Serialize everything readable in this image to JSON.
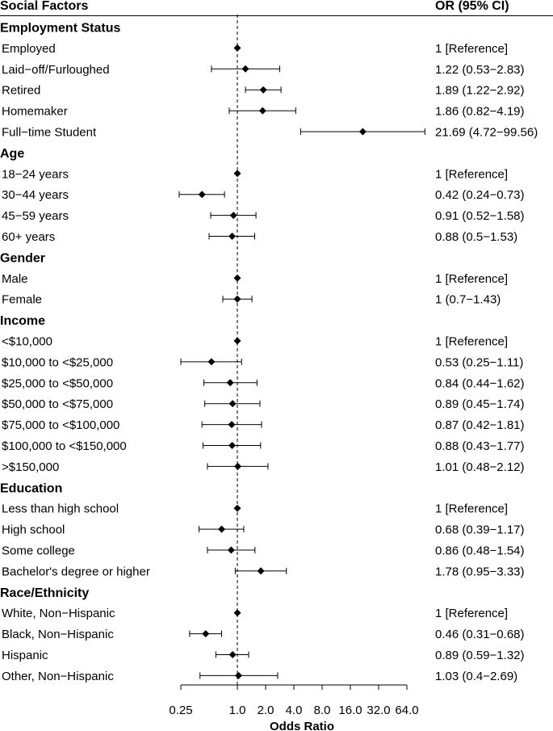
{
  "chart_data": {
    "type": "forest",
    "header": {
      "factor_label": "Social Factors",
      "or_label": "OR (95% CI)"
    },
    "xlabel": "Odds Ratio",
    "xscale": "log2",
    "xlim": [
      0.25,
      64.0
    ],
    "xticks": [
      "0.25",
      "1.0",
      "2.0",
      "4.0",
      "8.0",
      "16.0",
      "32.0",
      "64.0"
    ],
    "reference_line": 1.0,
    "groups": [
      {
        "name": "Employment Status",
        "rows": [
          {
            "label": "Employed",
            "or": 1.0,
            "lo": 1.0,
            "hi": 1.0,
            "text": "1 [Reference]"
          },
          {
            "label": "Laid−off/Furloughed",
            "or": 1.22,
            "lo": 0.53,
            "hi": 2.83,
            "text": "1.22 (0.53−2.83)"
          },
          {
            "label": "Retired",
            "or": 1.89,
            "lo": 1.22,
            "hi": 2.92,
            "text": "1.89 (1.22−2.92)"
          },
          {
            "label": "Homemaker",
            "or": 1.86,
            "lo": 0.82,
            "hi": 4.19,
            "text": "1.86 (0.82−4.19)"
          },
          {
            "label": "Full−time Student",
            "or": 21.69,
            "lo": 4.72,
            "hi": 99.56,
            "text": "21.69 (4.72−99.56)"
          }
        ]
      },
      {
        "name": "Age",
        "rows": [
          {
            "label": "18−24 years",
            "or": 1.0,
            "lo": 1.0,
            "hi": 1.0,
            "text": "1 [Reference]"
          },
          {
            "label": "30−44 years",
            "or": 0.42,
            "lo": 0.24,
            "hi": 0.73,
            "text": "0.42 (0.24−0.73)"
          },
          {
            "label": "45−59 years",
            "or": 0.91,
            "lo": 0.52,
            "hi": 1.58,
            "text": "0.91 (0.52−1.58)"
          },
          {
            "label": "60+ years",
            "or": 0.88,
            "lo": 0.5,
            "hi": 1.53,
            "text": "0.88 (0.5−1.53)"
          }
        ]
      },
      {
        "name": "Gender",
        "rows": [
          {
            "label": "Male",
            "or": 1.0,
            "lo": 1.0,
            "hi": 1.0,
            "text": "1 [Reference]"
          },
          {
            "label": "Female",
            "or": 1.0,
            "lo": 0.7,
            "hi": 1.43,
            "text": "1 (0.7−1.43)"
          }
        ]
      },
      {
        "name": "Income",
        "rows": [
          {
            "label": "<$10,000",
            "or": 1.0,
            "lo": 1.0,
            "hi": 1.0,
            "text": "1 [Reference]"
          },
          {
            "label": "$10,000 to <$25,000",
            "or": 0.53,
            "lo": 0.25,
            "hi": 1.11,
            "text": "0.53 (0.25−1.11)"
          },
          {
            "label": "$25,000 to <$50,000",
            "or": 0.84,
            "lo": 0.44,
            "hi": 1.62,
            "text": "0.84 (0.44−1.62)"
          },
          {
            "label": "$50,000 to <$75,000",
            "or": 0.89,
            "lo": 0.45,
            "hi": 1.74,
            "text": "0.89 (0.45−1.74)"
          },
          {
            "label": "$75,000 to <$100,000",
            "or": 0.87,
            "lo": 0.42,
            "hi": 1.81,
            "text": "0.87 (0.42−1.81)"
          },
          {
            "label": "$100,000 to <$150,000",
            "or": 0.88,
            "lo": 0.43,
            "hi": 1.77,
            "text": "0.88 (0.43−1.77)"
          },
          {
            "label": ">$150,000",
            "or": 1.01,
            "lo": 0.48,
            "hi": 2.12,
            "text": "1.01 (0.48−2.12)"
          }
        ]
      },
      {
        "name": "Education",
        "rows": [
          {
            "label": "Less than high school",
            "or": 1.0,
            "lo": 1.0,
            "hi": 1.0,
            "text": "1 [Reference]"
          },
          {
            "label": "High school",
            "or": 0.68,
            "lo": 0.39,
            "hi": 1.17,
            "text": "0.68 (0.39−1.17)"
          },
          {
            "label": "Some college",
            "or": 0.86,
            "lo": 0.48,
            "hi": 1.54,
            "text": "0.86 (0.48−1.54)"
          },
          {
            "label": "Bachelor's degree or higher",
            "or": 1.78,
            "lo": 0.95,
            "hi": 3.33,
            "text": "1.78 (0.95−3.33)"
          }
        ]
      },
      {
        "name": "Race/Ethnicity",
        "rows": [
          {
            "label": "White, Non−Hispanic",
            "or": 1.0,
            "lo": 1.0,
            "hi": 1.0,
            "text": "1 [Reference]"
          },
          {
            "label": "Black, Non−Hispanic",
            "or": 0.46,
            "lo": 0.31,
            "hi": 0.68,
            "text": "0.46 (0.31−0.68)"
          },
          {
            "label": "Hispanic",
            "or": 0.89,
            "lo": 0.59,
            "hi": 1.32,
            "text": "0.89 (0.59−1.32)"
          },
          {
            "label": "Other, Non−Hispanic",
            "or": 1.03,
            "lo": 0.4,
            "hi": 2.69,
            "text": "1.03 (0.4−2.69)"
          }
        ]
      }
    ]
  }
}
